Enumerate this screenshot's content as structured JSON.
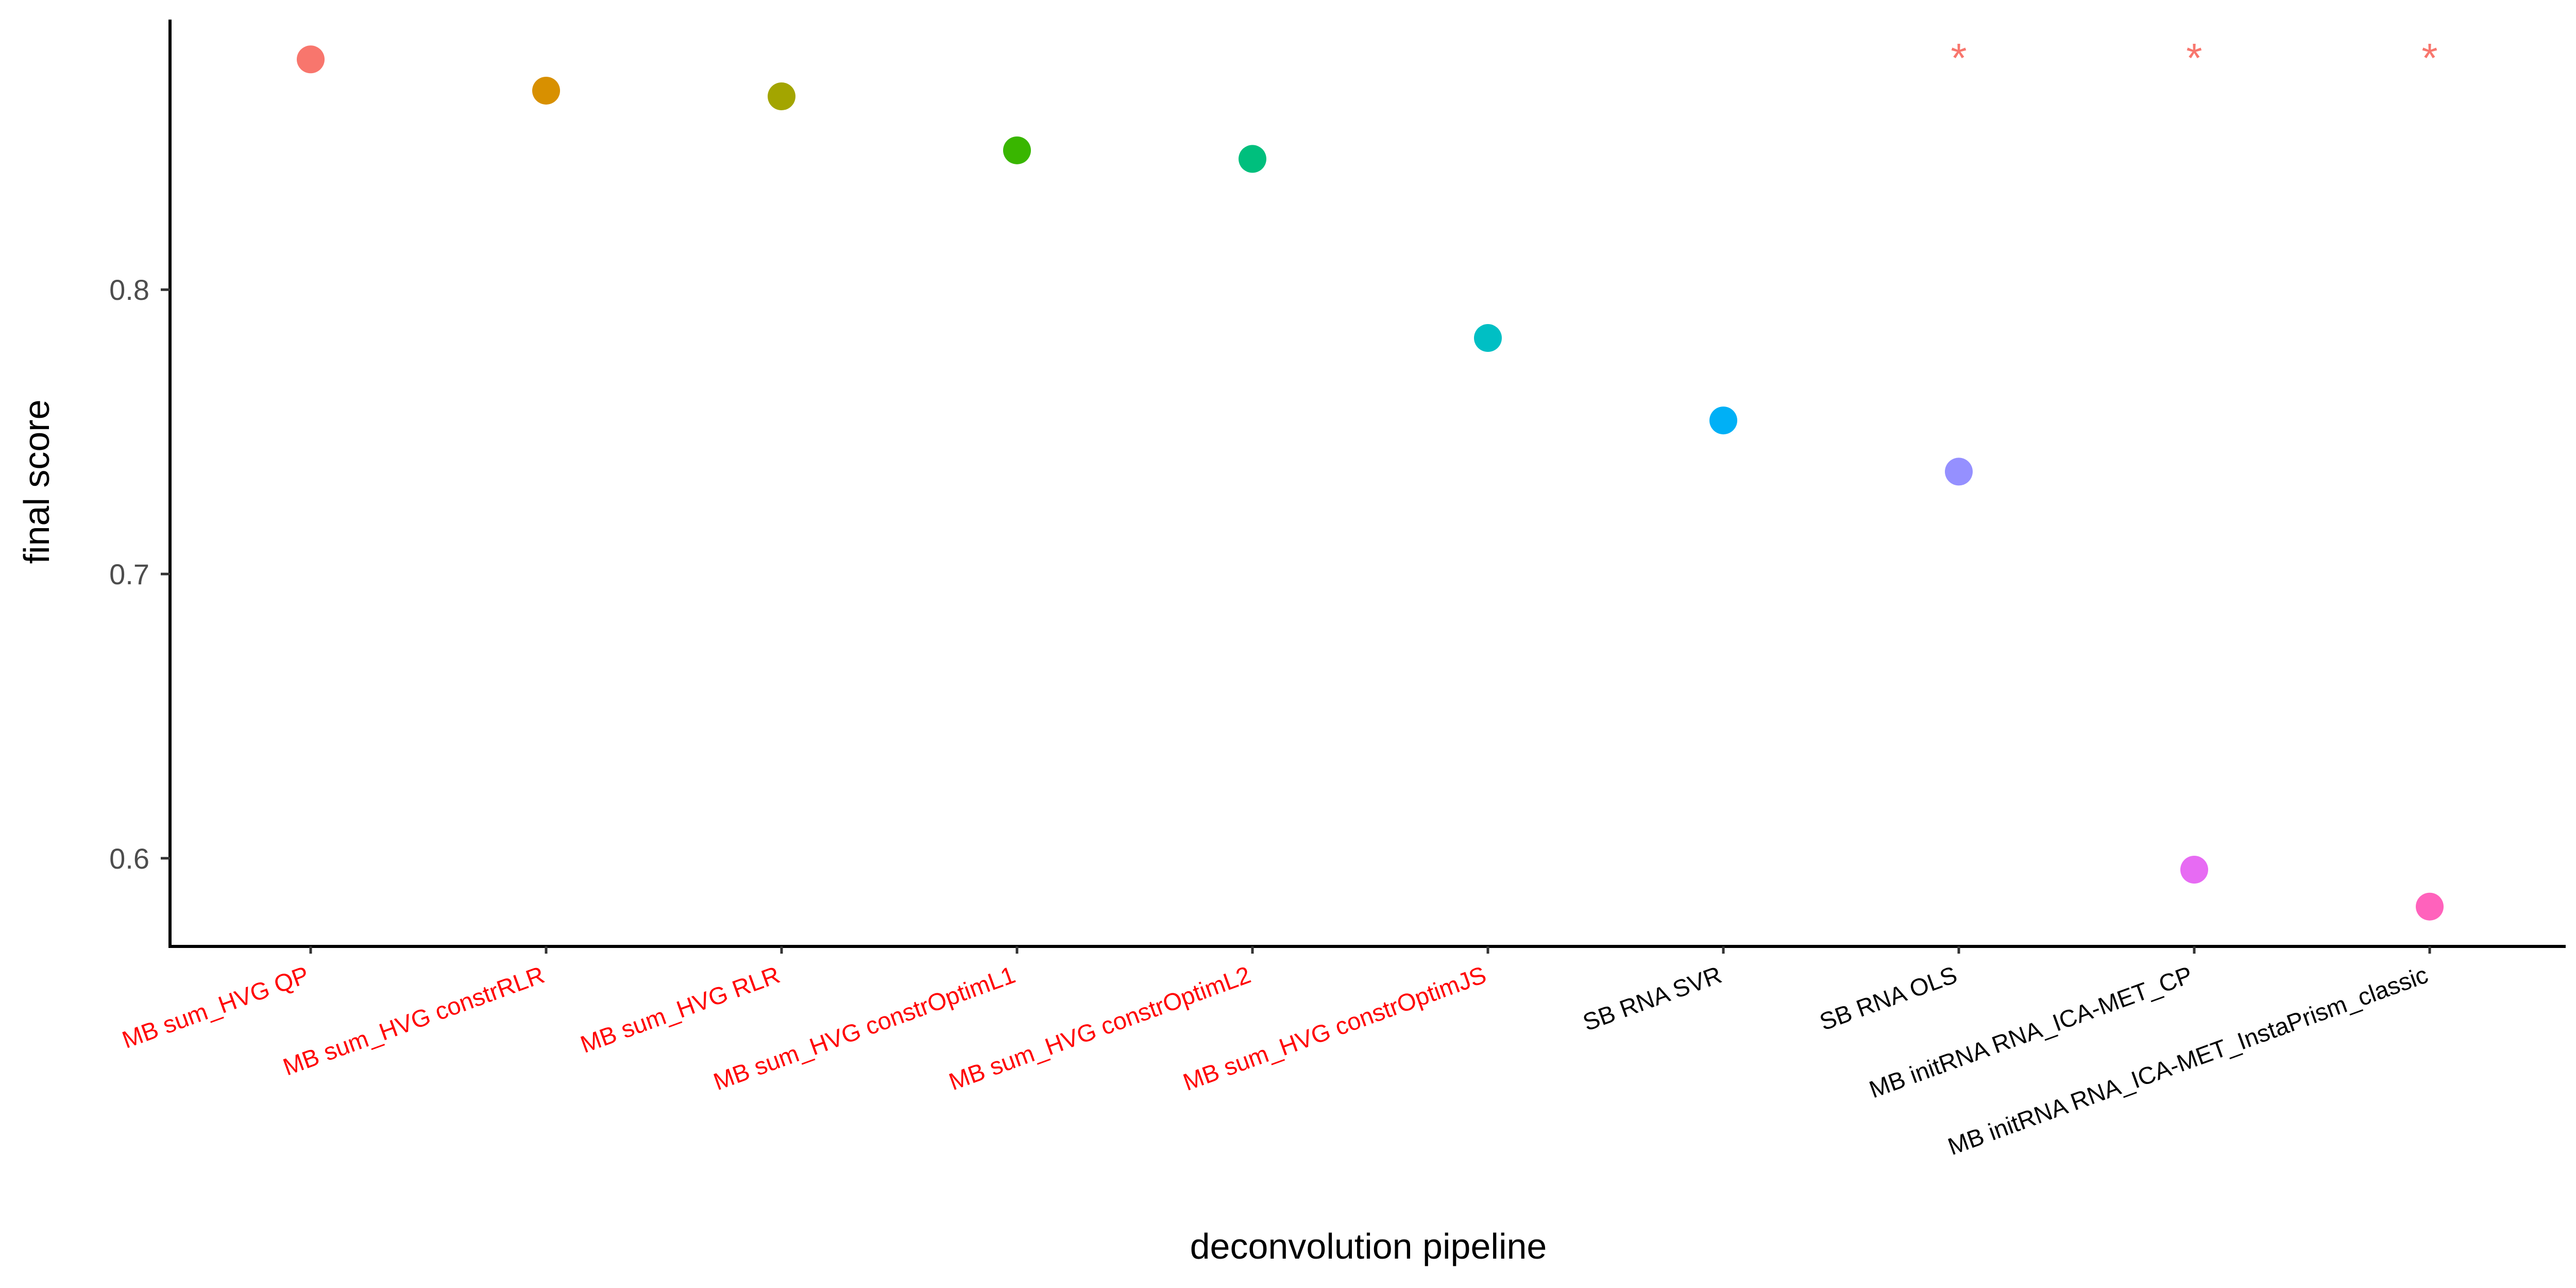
{
  "chart_data": {
    "type": "scatter",
    "xlabel": "deconvolution pipeline",
    "ylabel": "final score",
    "ylim": [
      0.569,
      0.895
    ],
    "yticks": [
      0.6,
      0.7,
      0.8
    ],
    "ytick_labels": [
      "0.6",
      "0.7",
      "0.8"
    ],
    "grid": false,
    "legend": "none",
    "categories": [
      "MB sum_HVG QP",
      "MB sum_HVG constrRLR",
      "MB sum_HVG RLR",
      "MB sum_HVG constrOptimL1",
      "MB sum_HVG constrOptimL2",
      "MB sum_HVG constrOptimJS",
      "SB RNA SVR",
      "SB RNA OLS",
      "MB initRNA RNA_ICA-MET_CP",
      "MB initRNA RNA_ICA-MET_InstaPrism_classic"
    ],
    "values": [
      0.881,
      0.87,
      0.868,
      0.849,
      0.846,
      0.783,
      0.754,
      0.736,
      0.596,
      0.583
    ],
    "point_colors": [
      "#F8766D",
      "#D89000",
      "#A3A500",
      "#39B600",
      "#00BF7D",
      "#00BFC4",
      "#00B0F6",
      "#9590FF",
      "#E76BF3",
      "#FF62BC"
    ],
    "label_colors": [
      "#FF0000",
      "#FF0000",
      "#FF0000",
      "#FF0000",
      "#FF0000",
      "#FF0000",
      "#000000",
      "#000000",
      "#000000",
      "#000000"
    ],
    "annotations": [
      {
        "category": "SB RNA OLS",
        "text": "*",
        "color": "#F8766D"
      },
      {
        "category": "MB initRNA RNA_ICA-MET_CP",
        "text": "*",
        "color": "#F8766D"
      },
      {
        "category": "MB initRNA RNA_ICA-MET_InstaPrism_classic",
        "text": "*",
        "color": "#F8766D"
      }
    ]
  }
}
